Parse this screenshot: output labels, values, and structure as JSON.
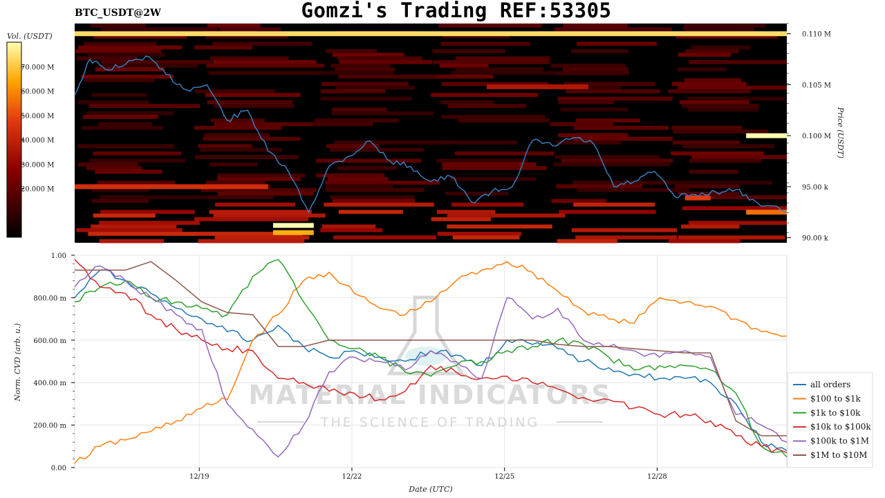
{
  "title": "Gomzi's Trading REF:53305",
  "symbol": "BTC_USDT@2W",
  "colorbar": {
    "label": "Vol. (USDT)",
    "ticks": [
      "20.000 M",
      "30.000 M",
      "40.000 M",
      "50.000 M",
      "60.000 M",
      "70.000 M"
    ],
    "values": [
      20,
      30,
      40,
      50,
      60,
      70
    ],
    "range": [
      0,
      80
    ]
  },
  "watermark": {
    "brand": "MATERIAL INDICATORS",
    "tagline": "THE SCIENCE OF TRADING"
  },
  "chart_data": [
    {
      "type": "heatmap",
      "name": "orderbook-heatmap",
      "ylabel": "Price (USDT)",
      "yticks": [
        "90.00 k",
        "95.00 k",
        "0.100 M",
        "0.105 M",
        "0.110 M"
      ],
      "ytick_values": [
        90000,
        95000,
        100000,
        105000,
        110000
      ],
      "ylim": [
        89500,
        111000
      ],
      "xlim": [
        0,
        14
      ],
      "price_line": {
        "color": "#3a86c8",
        "x": [
          0,
          0.3,
          0.6,
          1.0,
          1.4,
          1.8,
          2.2,
          2.6,
          3.0,
          3.4,
          3.8,
          4.2,
          4.6,
          5.0,
          5.4,
          5.8,
          6.2,
          6.6,
          7.0,
          7.4,
          7.8,
          8.2,
          8.6,
          9.0,
          9.4,
          9.8,
          10.2,
          10.6,
          11.0,
          11.4,
          11.8,
          12.2,
          12.6,
          13.0,
          13.4,
          14.0
        ],
        "y": [
          104000,
          107500,
          106500,
          107000,
          107800,
          106000,
          104500,
          105000,
          101500,
          102500,
          98500,
          96500,
          92500,
          97000,
          98000,
          99500,
          97500,
          97000,
          95500,
          96000,
          93500,
          94500,
          95000,
          99500,
          99000,
          99800,
          99200,
          95000,
          95500,
          96500,
          94000,
          94200,
          94500,
          94700,
          93500,
          92500
        ]
      },
      "bands": [
        {
          "price": 110000,
          "x0": 0,
          "x1": 14,
          "intensity": 0.92
        },
        {
          "price": 95000,
          "x0": 0,
          "x1": 3.8,
          "intensity": 0.55
        },
        {
          "price": 90500,
          "x0": 3.9,
          "x1": 4.7,
          "intensity": 0.82
        },
        {
          "price": 91200,
          "x0": 3.9,
          "x1": 4.7,
          "intensity": 1.0
        },
        {
          "price": 104800,
          "x0": 8.1,
          "x1": 10.1,
          "intensity": 0.45
        },
        {
          "price": 100000,
          "x0": 13.2,
          "x1": 14,
          "intensity": 1.0
        },
        {
          "price": 92500,
          "x0": 13.2,
          "x1": 14,
          "intensity": 0.7
        },
        {
          "price": 93900,
          "x0": 12.0,
          "x1": 12.5,
          "intensity": 0.6
        }
      ]
    },
    {
      "type": "line",
      "name": "cvd-lines",
      "xlabel": "Date (UTC)",
      "ylabel": "Norm. CVD (arb. u.)",
      "xticks": [
        "12/19",
        "12/22",
        "12/25",
        "12/28"
      ],
      "xtick_values": [
        2.45,
        5.45,
        8.45,
        11.45
      ],
      "xlim": [
        0,
        14
      ],
      "yticks": [
        "0.00",
        "200.00 m",
        "400.00 m",
        "600.00 m",
        "800.00 m",
        "1.00"
      ],
      "ytick_values": [
        0,
        0.2,
        0.4,
        0.6,
        0.8,
        1.0
      ],
      "ylim": [
        0,
        1.0
      ],
      "x": [
        0,
        0.5,
        1.0,
        1.5,
        2.0,
        2.5,
        3.0,
        3.5,
        4.0,
        4.5,
        5.0,
        5.5,
        6.0,
        6.5,
        7.0,
        7.5,
        8.0,
        8.5,
        9.0,
        9.5,
        10.0,
        10.5,
        11.0,
        11.5,
        12.0,
        12.5,
        13.0,
        13.5,
        14.0
      ],
      "series": [
        {
          "name": "all orders",
          "color": "#1f77b4",
          "values": [
            0.8,
            0.93,
            0.88,
            0.82,
            0.75,
            0.7,
            0.64,
            0.6,
            0.67,
            0.57,
            0.52,
            0.55,
            0.52,
            0.5,
            0.55,
            0.53,
            0.48,
            0.6,
            0.58,
            0.56,
            0.5,
            0.47,
            0.44,
            0.42,
            0.42,
            0.4,
            0.3,
            0.12,
            0.08
          ]
        },
        {
          "name": "$100 to $1k",
          "color": "#ff7f0e",
          "values": [
            0.02,
            0.1,
            0.13,
            0.17,
            0.22,
            0.28,
            0.32,
            0.6,
            0.72,
            0.88,
            0.92,
            0.82,
            0.75,
            0.72,
            0.78,
            0.88,
            0.93,
            0.97,
            0.92,
            0.83,
            0.74,
            0.7,
            0.68,
            0.8,
            0.78,
            0.76,
            0.7,
            0.64,
            0.62
          ]
        },
        {
          "name": "$1k to $10k",
          "color": "#2ca02c",
          "values": [
            0.78,
            0.85,
            0.88,
            0.8,
            0.78,
            0.75,
            0.72,
            0.9,
            0.98,
            0.78,
            0.6,
            0.56,
            0.52,
            0.45,
            0.43,
            0.48,
            0.5,
            0.55,
            0.57,
            0.6,
            0.58,
            0.52,
            0.46,
            0.48,
            0.48,
            0.46,
            0.35,
            0.1,
            0.05
          ]
        },
        {
          "name": "$10k to $100k",
          "color": "#d62728",
          "values": [
            0.98,
            0.85,
            0.82,
            0.72,
            0.65,
            0.6,
            0.56,
            0.55,
            0.42,
            0.4,
            0.36,
            0.35,
            0.32,
            0.36,
            0.48,
            0.45,
            0.42,
            0.43,
            0.4,
            0.37,
            0.33,
            0.32,
            0.28,
            0.25,
            0.25,
            0.22,
            0.15,
            0.1,
            0.07
          ]
        },
        {
          "name": "$100k to $1M",
          "color": "#9467bd",
          "values": [
            0.85,
            0.95,
            0.88,
            0.8,
            0.72,
            0.65,
            0.3,
            0.18,
            0.05,
            0.2,
            0.45,
            0.52,
            0.5,
            0.46,
            0.55,
            0.5,
            0.42,
            0.8,
            0.7,
            0.75,
            0.6,
            0.57,
            0.55,
            0.52,
            0.55,
            0.52,
            0.25,
            0.2,
            0.12
          ]
        },
        {
          "name": "$1M to $10M",
          "color": "#8c564b",
          "values": [
            0.93,
            0.93,
            0.93,
            0.97,
            0.88,
            0.78,
            0.73,
            0.72,
            0.57,
            0.57,
            0.6,
            0.6,
            0.6,
            0.6,
            0.6,
            0.6,
            0.6,
            0.6,
            0.6,
            0.58,
            0.57,
            0.57,
            0.56,
            0.55,
            0.54,
            0.54,
            0.22,
            0.15,
            0.15
          ]
        }
      ]
    }
  ]
}
